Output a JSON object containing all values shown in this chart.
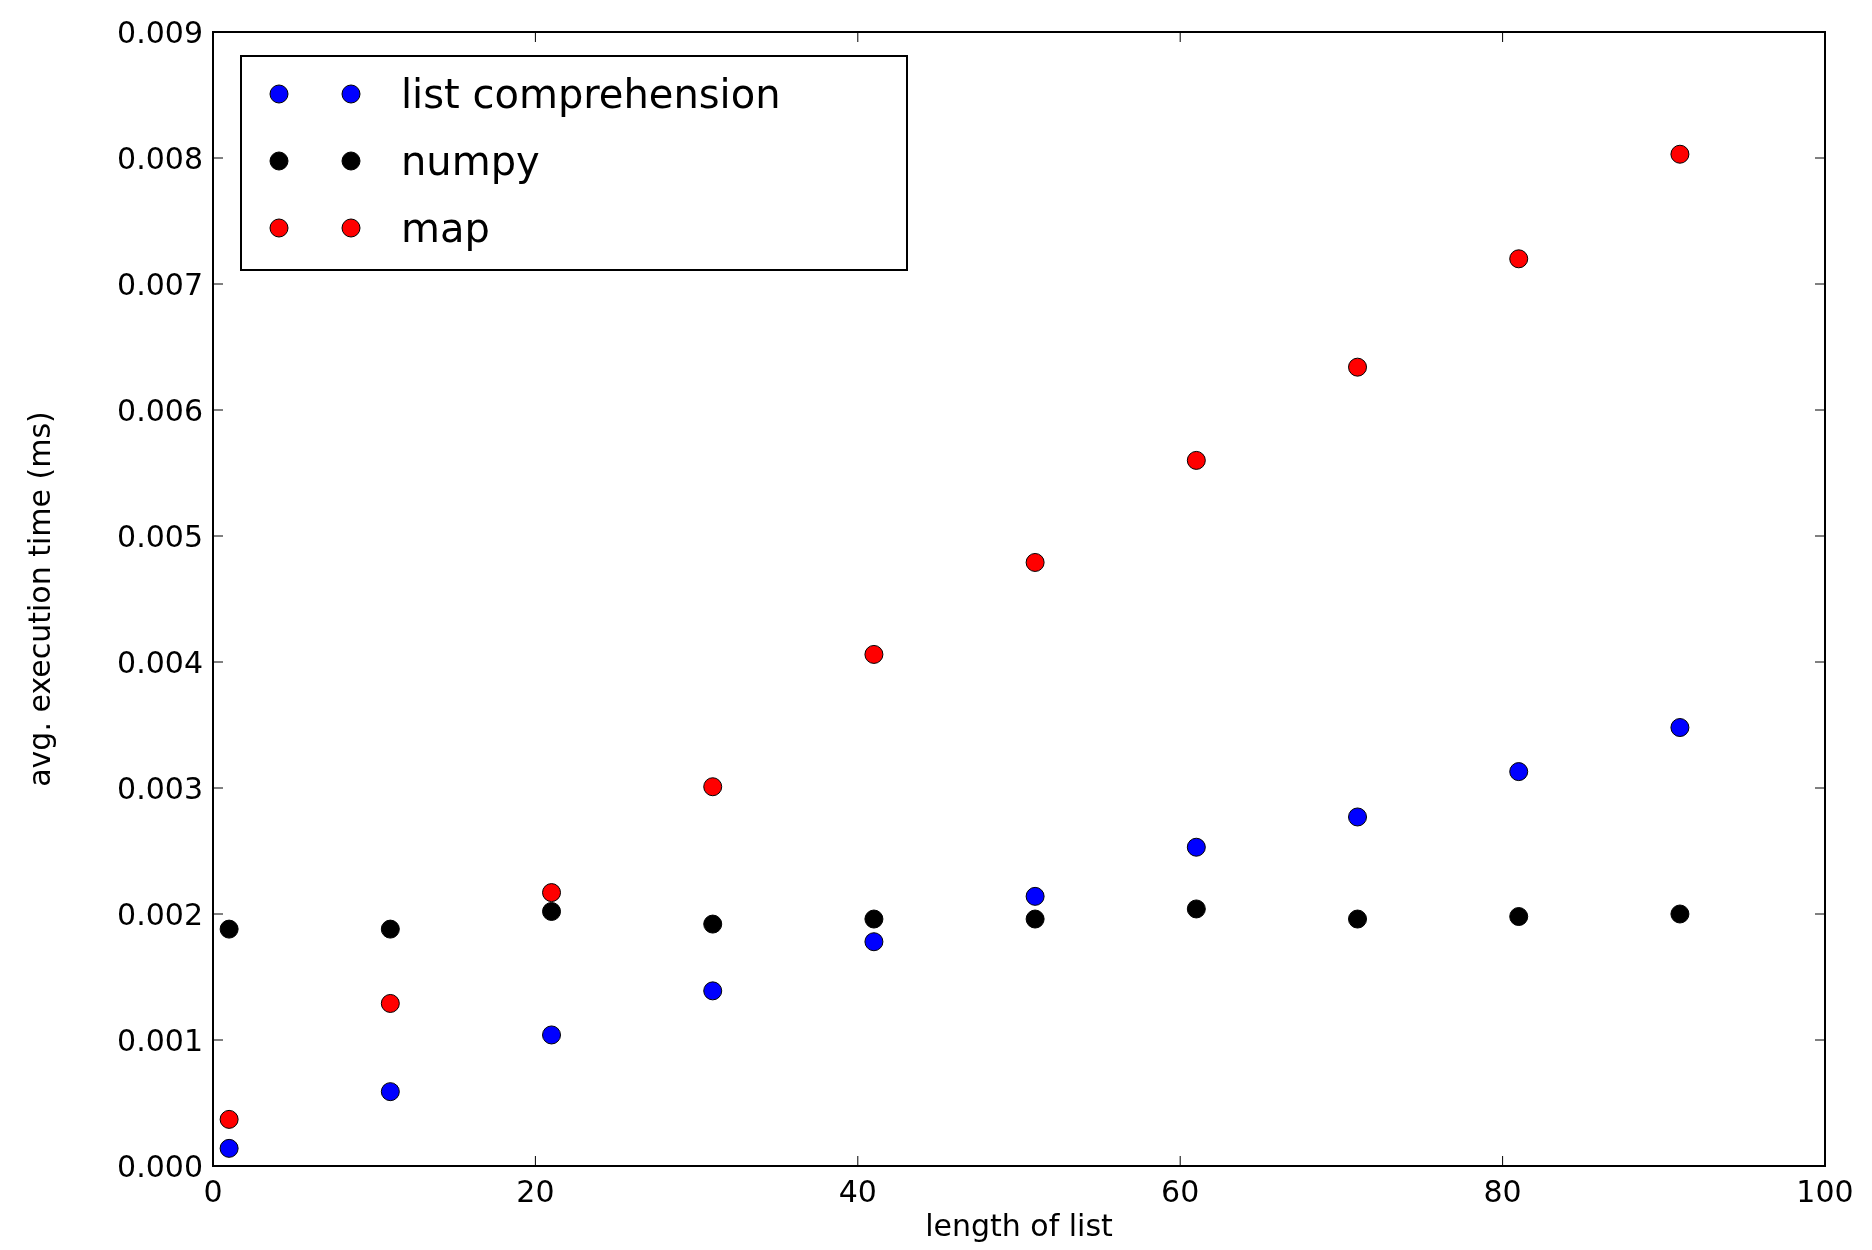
{
  "chart_data": {
    "type": "scatter",
    "xlabel": "length of list",
    "ylabel": "avg. execution time (ms)",
    "x": [
      1,
      11,
      21,
      31,
      41,
      51,
      61,
      71,
      81,
      91
    ],
    "series": [
      {
        "name": "list comprehension",
        "color": "#0000ff",
        "values": [
          0.00014,
          0.00059,
          0.00104,
          0.00139,
          0.00178,
          0.00214,
          0.00253,
          0.00277,
          0.00313,
          0.00348
        ]
      },
      {
        "name": "numpy",
        "color": "#000000",
        "values": [
          0.00188,
          0.00188,
          0.00202,
          0.00192,
          0.00196,
          0.00196,
          0.00204,
          0.00196,
          0.00198,
          0.002
        ]
      },
      {
        "name": "map",
        "color": "#ff0000",
        "values": [
          0.00037,
          0.00129,
          0.00217,
          0.00301,
          0.00406,
          0.00479,
          0.0056,
          0.00634,
          0.0072,
          0.00803
        ]
      }
    ],
    "xlim": [
      0,
      100
    ],
    "xticks": [
      0,
      20,
      40,
      60,
      80,
      100
    ],
    "ylim": [
      0,
      0.009
    ],
    "yticks": [
      {
        "value": 0,
        "label": "0.000"
      },
      {
        "value": 0.001,
        "label": "0.001"
      },
      {
        "value": 0.002,
        "label": "0.002"
      },
      {
        "value": 0.003,
        "label": "0.003"
      },
      {
        "value": 0.004,
        "label": "0.004"
      },
      {
        "value": 0.005,
        "label": "0.005"
      },
      {
        "value": 0.006,
        "label": "0.006"
      },
      {
        "value": 0.007,
        "label": "0.007"
      },
      {
        "value": 0.008,
        "label": "0.008"
      },
      {
        "value": 0.009,
        "label": "0.009"
      }
    ],
    "grid": false,
    "legend": "top left",
    "marker": "circle"
  }
}
